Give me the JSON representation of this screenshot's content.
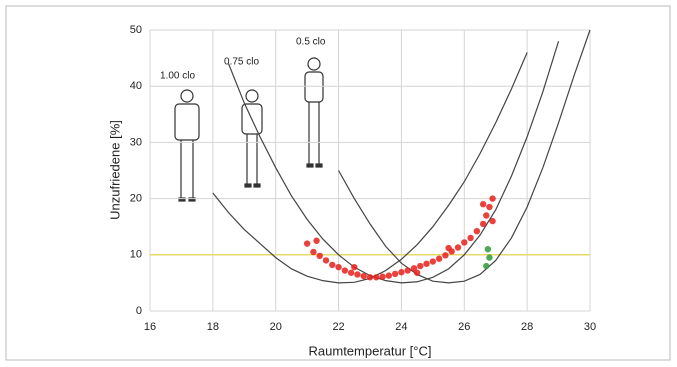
{
  "chart_data": {
    "type": "line",
    "xlabel": "Raumtemperatur [°C]",
    "ylabel": "Unzufriedene [%]",
    "xlim": [
      16,
      30
    ],
    "xticks": [
      16,
      18,
      20,
      22,
      24,
      26,
      28,
      30
    ],
    "ylim": [
      0,
      50
    ],
    "yticks": [
      0,
      10,
      20,
      30,
      40,
      50
    ],
    "grid": true,
    "x": [
      18,
      18.5,
      19,
      19.5,
      20,
      20.5,
      21,
      21.5,
      22,
      22.5,
      23,
      23.5,
      24,
      24.5,
      25,
      25.5,
      26,
      26.5,
      27,
      27.5,
      28,
      28.5,
      29,
      29.5,
      30
    ],
    "series": [
      {
        "name": "1.00 clo",
        "color": "#444444",
        "values": [
          21,
          17.5,
          14.5,
          12,
          9.5,
          7.5,
          6.2,
          5.4,
          5,
          5.1,
          5.8,
          7.2,
          9.2,
          11.8,
          15,
          18.8,
          23,
          28,
          33.5,
          39.5,
          46,
          null,
          null,
          null,
          null
        ]
      },
      {
        "name": "0.75 clo",
        "color": "#444444",
        "values": [
          null,
          44,
          37,
          31,
          25.5,
          20.5,
          16.3,
          12.8,
          10,
          7.8,
          6.3,
          5.4,
          5,
          5.2,
          6,
          7.5,
          10,
          13.5,
          18,
          24,
          31,
          39,
          48,
          null,
          null
        ]
      },
      {
        "name": "0.5 clo",
        "color": "#444444",
        "values": [
          null,
          null,
          null,
          null,
          null,
          null,
          null,
          null,
          25,
          20,
          15.5,
          11.5,
          8.5,
          6.5,
          5.3,
          5,
          5.3,
          6.5,
          9,
          13,
          18.5,
          25.5,
          33.5,
          42,
          50
        ]
      }
    ],
    "reference_line": {
      "value": 10,
      "color": "#e8d96a"
    },
    "points": [
      {
        "color": "#e8201a",
        "x": [
          21.0,
          21.2,
          21.4,
          21.6,
          21.8,
          22.0,
          22.2,
          22.4,
          22.6,
          22.8,
          23.0,
          23.2,
          23.4,
          23.6,
          23.8,
          24.0,
          24.2,
          24.4,
          24.6,
          24.8,
          25.0,
          25.2,
          25.4,
          25.6,
          25.8,
          26.0,
          26.2,
          26.4,
          26.6,
          26.7,
          26.8,
          26.9,
          26.6,
          26.9,
          21.3,
          22.5,
          24.5,
          25.5
        ],
        "y": [
          12,
          10.5,
          9.8,
          9,
          8.2,
          7.8,
          7.2,
          6.8,
          6.5,
          6.2,
          6,
          6,
          6.1,
          6.3,
          6.6,
          6.9,
          7.2,
          7.6,
          8,
          8.4,
          8.8,
          9.3,
          9.9,
          10.6,
          11.3,
          12.2,
          13,
          14.2,
          15.5,
          17,
          18.5,
          20,
          19,
          16,
          12.5,
          7.8,
          6.8,
          11.2
        ]
      },
      {
        "color": "#2e9a3a",
        "x": [
          26.7,
          26.8,
          26.75
        ],
        "y": [
          8,
          9.5,
          11
        ]
      }
    ]
  }
}
